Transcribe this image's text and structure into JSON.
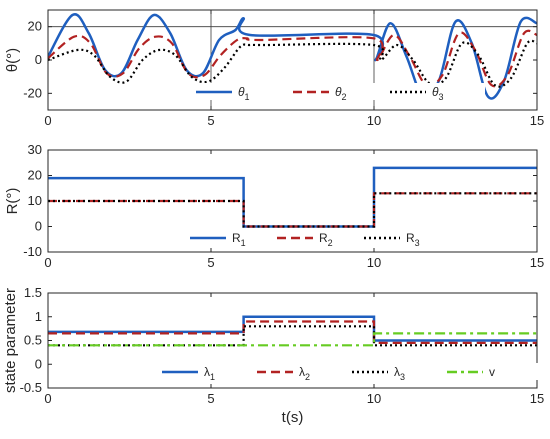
{
  "chart_data": [
    {
      "type": "line",
      "ylabel": "θ(°)",
      "xlim": [
        0,
        15
      ],
      "ylim": [
        -30,
        30
      ],
      "xticks": [
        "0",
        "5",
        "10",
        "15"
      ],
      "yticks": [
        "-20",
        "0",
        "20"
      ],
      "grid": "x=5, x=10, y=20",
      "legend_position": "bottom-center",
      "series": [
        {
          "name": "θ",
          "sub": "1",
          "color": "#1f5fbf",
          "dash": "solid",
          "x": [
            0,
            0.75,
            1.25,
            1.75,
            2.25,
            2.75,
            3.25,
            3.75,
            4.25,
            4.75,
            5.25,
            5.75,
            6.0,
            6.2,
            9.99,
            10.05,
            10.5,
            11.0,
            11.5,
            12.0,
            12.5,
            13.0,
            13.5,
            14.0,
            14.5,
            15.0
          ],
          "y": [
            2,
            27,
            16,
            -6,
            -8,
            12,
            27,
            16,
            -6,
            -8,
            12,
            18,
            25,
            15,
            15,
            0,
            22,
            2,
            -22,
            -12,
            23,
            10,
            -22,
            -12,
            23,
            22
          ]
        },
        {
          "name": "θ",
          "sub": "2",
          "color": "#b22222",
          "dash": "dashed",
          "x": [
            0,
            0.8,
            1.3,
            1.8,
            2.3,
            2.8,
            3.3,
            3.8,
            4.3,
            4.8,
            5.3,
            5.8,
            6.1,
            6.5,
            9.99,
            10.1,
            10.6,
            11.1,
            11.6,
            12.1,
            12.6,
            13.1,
            13.6,
            14.1,
            14.6,
            15.0
          ],
          "y": [
            1,
            14,
            10,
            -8,
            -8,
            7,
            14,
            10,
            -8,
            -9,
            3,
            12,
            13,
            12,
            13,
            0,
            15,
            2,
            -15,
            -9,
            16,
            6,
            -15,
            -9,
            16,
            15
          ]
        },
        {
          "name": "θ",
          "sub": "3",
          "color": "#000000",
          "dash": "dotted",
          "x": [
            0,
            0.9,
            1.4,
            1.9,
            2.4,
            2.9,
            3.4,
            3.9,
            4.4,
            4.9,
            5.4,
            5.9,
            6.2,
            6.7,
            9.99,
            10.2,
            10.7,
            11.2,
            11.7,
            12.2,
            12.7,
            13.2,
            13.7,
            14.2,
            14.7,
            15.0
          ],
          "y": [
            0,
            6,
            3,
            -10,
            -13,
            0,
            6,
            3,
            -10,
            -13,
            -5,
            8,
            9,
            9,
            9,
            0,
            9,
            0,
            -14,
            -11,
            10,
            3,
            -15,
            -11,
            10,
            10
          ]
        }
      ]
    },
    {
      "type": "line",
      "ylabel": "R(°)",
      "xlim": [
        0,
        15
      ],
      "ylim": [
        -10,
        30
      ],
      "xticks": [
        "0",
        "5",
        "10",
        "15"
      ],
      "yticks": [
        "-10",
        "0",
        "10",
        "20",
        "30"
      ],
      "legend_position": "bottom-center",
      "series": [
        {
          "name": "R",
          "sub": "1",
          "color": "#1f5fbf",
          "dash": "solid",
          "x": [
            0,
            6,
            6,
            10,
            10,
            15
          ],
          "y": [
            19,
            19,
            0,
            0,
            23,
            23
          ]
        },
        {
          "name": "R",
          "sub": "2",
          "color": "#b22222",
          "dash": "dashed",
          "x": [
            0,
            6,
            6,
            10,
            10,
            15
          ],
          "y": [
            10,
            10,
            0,
            0,
            13,
            13
          ]
        },
        {
          "name": "R",
          "sub": "3",
          "color": "#000000",
          "dash": "dotted",
          "x": [
            0,
            6,
            6,
            10,
            10,
            15
          ],
          "y": [
            10,
            10,
            0,
            0,
            13,
            13
          ]
        }
      ]
    },
    {
      "type": "line",
      "ylabel": "state parameter",
      "xlabel": "t(s)",
      "xlim": [
        0,
        15
      ],
      "ylim": [
        -0.5,
        1.5
      ],
      "xticks": [
        "0",
        "5",
        "10",
        "15"
      ],
      "yticks": [
        "-0.5",
        "0",
        "0.5",
        "1",
        "1.5"
      ],
      "legend_position": "bottom-center",
      "series": [
        {
          "name": "λ",
          "sub": "1",
          "color": "#1f5fbf",
          "dash": "solid",
          "x": [
            0,
            6,
            6,
            10,
            10,
            15
          ],
          "y": [
            0.68,
            0.68,
            1.0,
            1.0,
            0.5,
            0.5
          ]
        },
        {
          "name": "λ",
          "sub": "2",
          "color": "#b22222",
          "dash": "dashed",
          "x": [
            0,
            6,
            6,
            10,
            10,
            15
          ],
          "y": [
            0.65,
            0.65,
            0.9,
            0.9,
            0.45,
            0.45
          ]
        },
        {
          "name": "λ",
          "sub": "3",
          "color": "#000000",
          "dash": "dotted",
          "x": [
            0,
            6,
            6,
            10,
            10,
            15
          ],
          "y": [
            0.4,
            0.4,
            0.8,
            0.8,
            0.4,
            0.4
          ]
        },
        {
          "name": "v",
          "sub": "",
          "color": "#66cc22",
          "dash": "dashdot",
          "x": [
            0,
            10,
            10,
            15
          ],
          "y": [
            0.4,
            0.4,
            0.65,
            0.65
          ]
        }
      ]
    }
  ]
}
